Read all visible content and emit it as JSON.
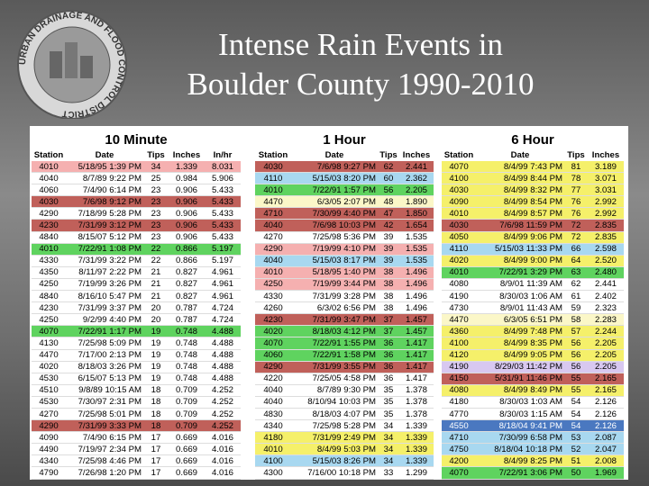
{
  "title_lines": [
    "Intense Rain Events in",
    "Boulder County 1990-2010"
  ],
  "logo": "URBAN DRAINAGE AND FLOOD CONTROL DISTRICT",
  "tables": [
    {
      "title": "10 Minute",
      "columns": [
        "Station",
        "Date",
        "Tips",
        "Inches",
        "In/hr"
      ],
      "rows": [
        [
          "4010",
          "5/18/95 1:39 PM",
          "34",
          "1.339",
          "8.031"
        ],
        [
          "4040",
          "8/7/89 9:22 PM",
          "25",
          "0.984",
          "5.906"
        ],
        [
          "4060",
          "7/4/90 6:14 PM",
          "23",
          "0.906",
          "5.433"
        ],
        [
          "4030",
          "7/6/98 9:12 PM",
          "23",
          "0.906",
          "5.433"
        ],
        [
          "4290",
          "7/18/99 5:28 PM",
          "23",
          "0.906",
          "5.433"
        ],
        [
          "4230",
          "7/31/99 3:12 PM",
          "23",
          "0.906",
          "5.433"
        ],
        [
          "4840",
          "8/15/07 5:12 PM",
          "23",
          "0.906",
          "5.433"
        ],
        [
          "4010",
          "7/22/91 1:08 PM",
          "22",
          "0.866",
          "5.197"
        ],
        [
          "4330",
          "7/31/99 3:22 PM",
          "22",
          "0.866",
          "5.197"
        ],
        [
          "4350",
          "8/11/97 2:22 PM",
          "21",
          "0.827",
          "4.961"
        ],
        [
          "4250",
          "7/19/99 3:26 PM",
          "21",
          "0.827",
          "4.961"
        ],
        [
          "4840",
          "8/16/10 5:47 PM",
          "21",
          "0.827",
          "4.961"
        ],
        [
          "4230",
          "7/31/99 3:37 PM",
          "20",
          "0.787",
          "4.724"
        ],
        [
          "4250",
          "9/2/99 4:40 PM",
          "20",
          "0.787",
          "4.724"
        ],
        [
          "4070",
          "7/22/91 1:17 PM",
          "19",
          "0.748",
          "4.488"
        ],
        [
          "4130",
          "7/25/98 5:09 PM",
          "19",
          "0.748",
          "4.488"
        ],
        [
          "4470",
          "7/17/00 2:13 PM",
          "19",
          "0.748",
          "4.488"
        ],
        [
          "4020",
          "8/18/03 3:26 PM",
          "19",
          "0.748",
          "4.488"
        ],
        [
          "4530",
          "6/15/07 5:13 PM",
          "19",
          "0.748",
          "4.488"
        ],
        [
          "4510",
          "9/8/89 10:15 AM",
          "18",
          "0.709",
          "4.252"
        ],
        [
          "4530",
          "7/30/97 2:31 PM",
          "18",
          "0.709",
          "4.252"
        ],
        [
          "4270",
          "7/25/98 5:01 PM",
          "18",
          "0.709",
          "4.252"
        ],
        [
          "4290",
          "7/31/99 3:33 PM",
          "18",
          "0.709",
          "4.252"
        ],
        [
          "4090",
          "7/4/90 6:15 PM",
          "17",
          "0.669",
          "4.016"
        ],
        [
          "4490",
          "7/19/97 2:34 PM",
          "17",
          "0.669",
          "4.016"
        ],
        [
          "4340",
          "7/25/98 4:46 PM",
          "17",
          "0.669",
          "4.016"
        ],
        [
          "4790",
          "7/26/98 1:20 PM",
          "17",
          "0.669",
          "4.016"
        ]
      ],
      "row_colors": [
        "#f5b0b0",
        "#ffffff",
        "#ffffff",
        "#c0605a",
        "#ffffff",
        "#c0605a",
        "#ffffff",
        "#5fd35f",
        "#ffffff",
        "#ffffff",
        "#ffffff",
        "#ffffff",
        "#ffffff",
        "#ffffff",
        "#5fd35f",
        "#ffffff",
        "#ffffff",
        "#ffffff",
        "#ffffff",
        "#ffffff",
        "#ffffff",
        "#ffffff",
        "#c0605a",
        "#ffffff",
        "#ffffff",
        "#ffffff",
        "#ffffff"
      ]
    },
    {
      "title": "1 Hour",
      "columns": [
        "Station",
        "Date",
        "Tips",
        "Inches"
      ],
      "rows": [
        [
          "4030",
          "7/6/98 9:27 PM",
          "62",
          "2.441"
        ],
        [
          "4110",
          "5/15/03 8:20 PM",
          "60",
          "2.362"
        ],
        [
          "4010",
          "7/22/91 1:57 PM",
          "56",
          "2.205"
        ],
        [
          "4470",
          "6/3/05 2:07 PM",
          "48",
          "1.890"
        ],
        [
          "4710",
          "7/30/99 4:40 PM",
          "47",
          "1.850"
        ],
        [
          "4040",
          "7/6/98 10:03 PM",
          "42",
          "1.654"
        ],
        [
          "4270",
          "7/25/98 5:36 PM",
          "39",
          "1.535"
        ],
        [
          "4290",
          "7/19/99 4:10 PM",
          "39",
          "1.535"
        ],
        [
          "4040",
          "5/15/03 8:17 PM",
          "39",
          "1.535"
        ],
        [
          "4010",
          "5/18/95 1:40 PM",
          "38",
          "1.496"
        ],
        [
          "4250",
          "7/19/99 3:44 PM",
          "38",
          "1.496"
        ],
        [
          "4330",
          "7/31/99 3:28 PM",
          "38",
          "1.496"
        ],
        [
          "4260",
          "6/3/02 6:56 PM",
          "38",
          "1.496"
        ],
        [
          "4230",
          "7/31/99 3:47 PM",
          "37",
          "1.457"
        ],
        [
          "4020",
          "8/18/03 4:12 PM",
          "37",
          "1.457"
        ],
        [
          "4070",
          "7/22/91 1:55 PM",
          "36",
          "1.417"
        ],
        [
          "4060",
          "7/22/91 1:58 PM",
          "36",
          "1.417"
        ],
        [
          "4290",
          "7/31/99 3:55 PM",
          "36",
          "1.417"
        ],
        [
          "4220",
          "7/25/05 4:58 PM",
          "36",
          "1.417"
        ],
        [
          "4040",
          "8/7/89 9:30 PM",
          "35",
          "1.378"
        ],
        [
          "4040",
          "8/10/94 10:03 PM",
          "35",
          "1.378"
        ],
        [
          "4830",
          "8/18/03 4:07 PM",
          "35",
          "1.378"
        ],
        [
          "4340",
          "7/25/98 5:28 PM",
          "34",
          "1.339"
        ],
        [
          "4180",
          "7/31/99 2:49 PM",
          "34",
          "1.339"
        ],
        [
          "4010",
          "8/4/99 5:03 PM",
          "34",
          "1.339"
        ],
        [
          "4100",
          "5/15/03 8:26 PM",
          "34",
          "1.339"
        ],
        [
          "4300",
          "7/16/00 10:18 PM",
          "33",
          "1.299"
        ]
      ],
      "row_colors": [
        "#c0605a",
        "#a8d8f0",
        "#5fd35f",
        "#fbf7c8",
        "#c0605a",
        "#c0605a",
        "#ffffff",
        "#f5b0b0",
        "#a8d8f0",
        "#f5b0b0",
        "#f5b0b0",
        "#ffffff",
        "#ffffff",
        "#c0605a",
        "#5fd35f",
        "#5fd35f",
        "#5fd35f",
        "#c0605a",
        "#ffffff",
        "#ffffff",
        "#ffffff",
        "#ffffff",
        "#ffffff",
        "#f5f06a",
        "#f5f06a",
        "#a8d8f0",
        "#ffffff"
      ]
    },
    {
      "title": "6 Hour",
      "columns": [
        "Station",
        "Date",
        "Tips",
        "Inches"
      ],
      "rows": [
        [
          "4070",
          "8/4/99 7:43 PM",
          "81",
          "3.189"
        ],
        [
          "4100",
          "8/4/99 8:44 PM",
          "78",
          "3.071"
        ],
        [
          "4030",
          "8/4/99 8:32 PM",
          "77",
          "3.031"
        ],
        [
          "4090",
          "8/4/99 8:54 PM",
          "76",
          "2.992"
        ],
        [
          "4010",
          "8/4/99 8:57 PM",
          "76",
          "2.992"
        ],
        [
          "4030",
          "7/6/98 11:59 PM",
          "72",
          "2.835"
        ],
        [
          "4050",
          "8/4/99 9:06 PM",
          "72",
          "2.835"
        ],
        [
          "4110",
          "5/15/03 11:33 PM",
          "66",
          "2.598"
        ],
        [
          "4020",
          "8/4/99 9:00 PM",
          "64",
          "2.520"
        ],
        [
          "4010",
          "7/22/91 3:29 PM",
          "63",
          "2.480"
        ],
        [
          "4080",
          "8/9/01 11:39 AM",
          "62",
          "2.441"
        ],
        [
          "4190",
          "8/30/03 1:06 AM",
          "61",
          "2.402"
        ],
        [
          "4730",
          "8/9/01 11:43 AM",
          "59",
          "2.323"
        ],
        [
          "4470",
          "6/3/05 6:51 PM",
          "58",
          "2.283"
        ],
        [
          "4360",
          "8/4/99 7:48 PM",
          "57",
          "2.244"
        ],
        [
          "4100",
          "8/4/99 8:35 PM",
          "56",
          "2.205"
        ],
        [
          "4120",
          "8/4/99 9:05 PM",
          "56",
          "2.205"
        ],
        [
          "4190",
          "8/29/03 11:42 PM",
          "56",
          "2.205"
        ],
        [
          "4150",
          "5/31/91 11:46 PM",
          "55",
          "2.165"
        ],
        [
          "4080",
          "8/4/99 8:49 PM",
          "55",
          "2.165"
        ],
        [
          "4180",
          "8/30/03 1:03 AM",
          "54",
          "2.126"
        ],
        [
          "4770",
          "8/30/03 1:15 AM",
          "54",
          "2.126"
        ],
        [
          "4550",
          "8/18/04 9:41 PM",
          "54",
          "2.126"
        ],
        [
          "4710",
          "7/30/99 6:58 PM",
          "53",
          "2.087"
        ],
        [
          "4750",
          "8/18/04 10:18 PM",
          "52",
          "2.047"
        ],
        [
          "4200",
          "8/4/99 8:25 PM",
          "51",
          "2.008"
        ],
        [
          "4070",
          "7/22/91 3:06 PM",
          "50",
          "1.969"
        ]
      ],
      "row_colors": [
        "#f5f06a",
        "#f5f06a",
        "#f5f06a",
        "#f5f06a",
        "#f5f06a",
        "#c0605a",
        "#f5f06a",
        "#a8d8f0",
        "#f5f06a",
        "#5fd35f",
        "#ffffff",
        "#ffffff",
        "#ffffff",
        "#fbf7c8",
        "#f5f06a",
        "#f5f06a",
        "#f5f06a",
        "#d8c8f0",
        "#c0605a",
        "#f5f06a",
        "#ffffff",
        "#ffffff",
        "#4a78c0",
        "#a8d8f0",
        "#a8d8f0",
        "#f5f06a",
        "#5fd35f"
      ]
    }
  ]
}
